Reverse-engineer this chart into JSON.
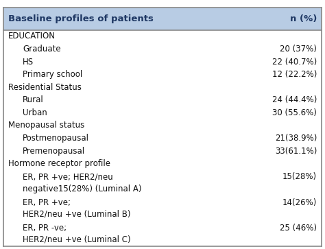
{
  "title_col1": "Baseline profiles of patients",
  "title_col2": "n (%)",
  "header_bg": "#b8cce4",
  "header_text_color": "#1f3864",
  "body_bg": "#ffffff",
  "border_color": "#888888",
  "rows": [
    {
      "label": "EDUCATION",
      "value": "",
      "indent": 0
    },
    {
      "label": "Graduate",
      "value": "20 (37%)",
      "indent": 1
    },
    {
      "label": "HS",
      "value": "22 (40.7%)",
      "indent": 1
    },
    {
      "label": "Primary school",
      "value": "12 (22.2%)",
      "indent": 1
    },
    {
      "label": "Residential Status",
      "value": "",
      "indent": 0
    },
    {
      "label": "Rural",
      "value": "24 (44.4%)",
      "indent": 1
    },
    {
      "label": "Urban",
      "value": "30 (55.6%)",
      "indent": 1
    },
    {
      "label": "Menopausal status",
      "value": "",
      "indent": 0
    },
    {
      "label": "Postmenopausal",
      "value": "21(38.9%)",
      "indent": 1
    },
    {
      "label": "Premenopausal",
      "value": "33(61.1%)",
      "indent": 1
    },
    {
      "label": "Hormone receptor profile",
      "value": "",
      "indent": 0
    },
    {
      "label": "ER, PR +ve; HER2/neu\nnegative15(28%) (Luminal A)",
      "value": "15(28%)",
      "indent": 1
    },
    {
      "label": "ER, PR +ve;\nHER2/neu +ve (Luminal B)",
      "value": "14(26%)",
      "indent": 1
    },
    {
      "label": "ER, PR -ve;\nHER2/neu +ve (Luminal C)",
      "value": "25 (46%)",
      "indent": 1
    }
  ],
  "font_family": "DejaVu Sans",
  "font_size": 8.5,
  "header_font_size": 9.5
}
